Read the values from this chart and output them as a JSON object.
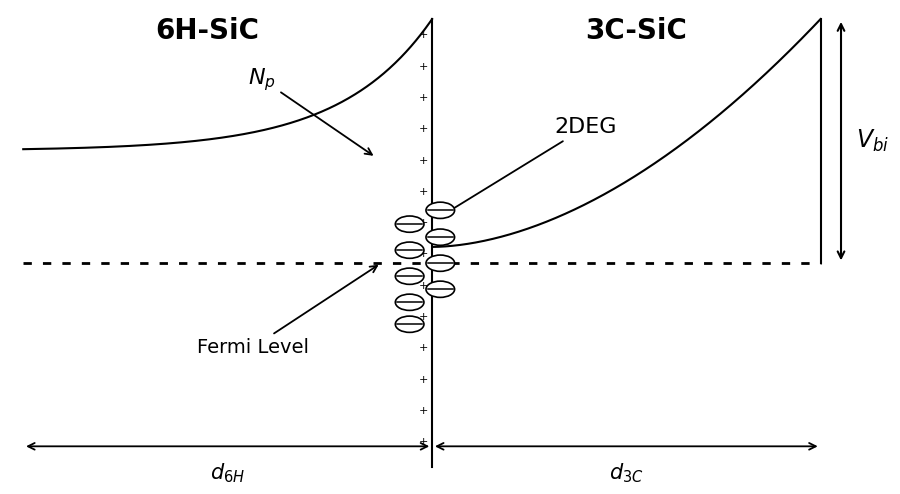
{
  "title_left": "6H-SiC",
  "title_right": "3C-SiC",
  "fermi_label": "Fermi Level",
  "np_label": "N",
  "np_sub": "p",
  "deg_label": "2DEG",
  "vbi_label": "V",
  "vbi_sub": "bi",
  "d6h_label": "d",
  "d6h_sub": "6H",
  "d3c_label": "d",
  "d3c_sub": "3C",
  "bg_color": "#ffffff",
  "line_color": "#000000",
  "fig_width": 9.0,
  "fig_height": 4.94,
  "dpi": 100,
  "xlim": [
    -4.2,
    4.5
  ],
  "ylim": [
    -2.8,
    3.2
  ]
}
